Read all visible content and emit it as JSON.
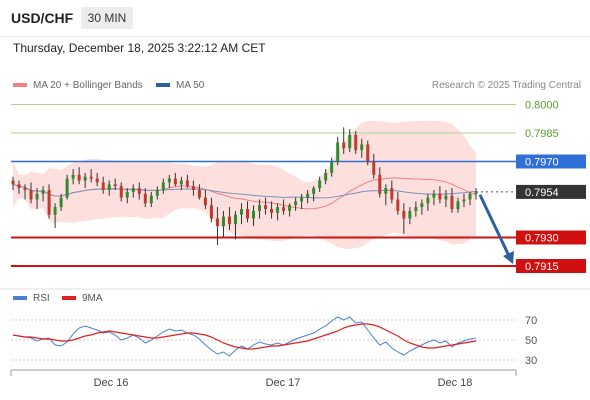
{
  "header": {
    "symbol": "USD/CHF",
    "timeframe": "30 MIN",
    "datetime": "Thursday, December 18, 2025 3:22:12 AM CET",
    "credit": "Research © 2025 Trading Central"
  },
  "legend": {
    "ma20": {
      "label": "MA 20 + Bollinger Bands",
      "color": "#f08080"
    },
    "ma50": {
      "label": "MA 50",
      "color": "#2f5f9e"
    },
    "rsi": {
      "label": "RSI",
      "color": "#4a7fd4"
    },
    "ma9": {
      "label": "9MA",
      "color": "#e02020"
    }
  },
  "chart_data": {
    "type": "candlestick",
    "price_axis": {
      "min": 0.7905,
      "max": 0.8005
    },
    "x_ticks": [
      "Dec 16",
      "Dec 17",
      "Dec 18"
    ],
    "levels": [
      {
        "price": 0.8,
        "label": "0.8000",
        "style": "green"
      },
      {
        "price": 0.7985,
        "label": "0.7985",
        "style": "green"
      },
      {
        "price": 0.797,
        "label": "0.7970",
        "style": "blue"
      },
      {
        "price": 0.7954,
        "label": "0.7954",
        "style": "current"
      },
      {
        "price": 0.793,
        "label": "0.7930",
        "style": "red"
      },
      {
        "price": 0.7915,
        "label": "0.7915",
        "style": "red"
      }
    ],
    "forecast_arrow": {
      "from": 0.7954,
      "to": 0.7915
    },
    "candles": [
      [
        0.796,
        0.7962,
        0.7955,
        0.7958
      ],
      [
        0.7958,
        0.796,
        0.7953,
        0.7956
      ],
      [
        0.7956,
        0.7958,
        0.795,
        0.7955
      ],
      [
        0.7955,
        0.7959,
        0.7948,
        0.795
      ],
      [
        0.795,
        0.7956,
        0.7945,
        0.7953
      ],
      [
        0.7953,
        0.7957,
        0.7949,
        0.7955
      ],
      [
        0.7955,
        0.7958,
        0.794,
        0.7942
      ],
      [
        0.7942,
        0.7948,
        0.7935,
        0.7946
      ],
      [
        0.7946,
        0.7953,
        0.7944,
        0.7951
      ],
      [
        0.7951,
        0.7963,
        0.795,
        0.7961
      ],
      [
        0.7961,
        0.7966,
        0.7958,
        0.7963
      ],
      [
        0.7963,
        0.7967,
        0.7958,
        0.796
      ],
      [
        0.796,
        0.7964,
        0.7956,
        0.7962
      ],
      [
        0.7962,
        0.7966,
        0.7959,
        0.7961
      ],
      [
        0.7961,
        0.7964,
        0.7957,
        0.7959
      ],
      [
        0.7959,
        0.7962,
        0.7953,
        0.7955
      ],
      [
        0.7955,
        0.796,
        0.7952,
        0.7958
      ],
      [
        0.7958,
        0.7961,
        0.7955,
        0.7957
      ],
      [
        0.7957,
        0.7959,
        0.7949,
        0.7951
      ],
      [
        0.7951,
        0.7956,
        0.7948,
        0.7954
      ],
      [
        0.7954,
        0.7958,
        0.7951,
        0.7956
      ],
      [
        0.7956,
        0.7959,
        0.795,
        0.7953
      ],
      [
        0.7953,
        0.7956,
        0.7946,
        0.7948
      ],
      [
        0.7948,
        0.7954,
        0.7946,
        0.7952
      ],
      [
        0.7952,
        0.7957,
        0.795,
        0.7955
      ],
      [
        0.7955,
        0.7961,
        0.7953,
        0.7959
      ],
      [
        0.7959,
        0.7963,
        0.7956,
        0.7961
      ],
      [
        0.7961,
        0.7964,
        0.7957,
        0.7958
      ],
      [
        0.7958,
        0.7962,
        0.7955,
        0.796
      ],
      [
        0.796,
        0.7963,
        0.7956,
        0.7957
      ],
      [
        0.7957,
        0.796,
        0.7952,
        0.7955
      ],
      [
        0.7955,
        0.7958,
        0.795,
        0.7951
      ],
      [
        0.7951,
        0.7955,
        0.7945,
        0.7947
      ],
      [
        0.7947,
        0.7951,
        0.7938,
        0.794
      ],
      [
        0.794,
        0.7946,
        0.7926,
        0.7936
      ],
      [
        0.7936,
        0.7944,
        0.793,
        0.7941
      ],
      [
        0.7941,
        0.7946,
        0.7934,
        0.7937
      ],
      [
        0.7937,
        0.7944,
        0.7929,
        0.7942
      ],
      [
        0.7942,
        0.7948,
        0.7937,
        0.7945
      ],
      [
        0.7945,
        0.7949,
        0.7938,
        0.794
      ],
      [
        0.794,
        0.7947,
        0.7936,
        0.7944
      ],
      [
        0.7944,
        0.795,
        0.794,
        0.7947
      ],
      [
        0.7947,
        0.7951,
        0.7942,
        0.7945
      ],
      [
        0.7945,
        0.7949,
        0.794,
        0.7943
      ],
      [
        0.7943,
        0.7948,
        0.7939,
        0.7946
      ],
      [
        0.7946,
        0.795,
        0.7942,
        0.7944
      ],
      [
        0.7944,
        0.7948,
        0.7941,
        0.7947
      ],
      [
        0.7947,
        0.7951,
        0.7944,
        0.7949
      ],
      [
        0.7949,
        0.7953,
        0.7945,
        0.7951
      ],
      [
        0.7951,
        0.7955,
        0.7948,
        0.7953
      ],
      [
        0.7953,
        0.7957,
        0.7949,
        0.7956
      ],
      [
        0.7956,
        0.7962,
        0.7954,
        0.796
      ],
      [
        0.796,
        0.7966,
        0.7958,
        0.7964
      ],
      [
        0.7964,
        0.7972,
        0.7962,
        0.797
      ],
      [
        0.797,
        0.7983,
        0.7968,
        0.798
      ],
      [
        0.798,
        0.7988,
        0.7974,
        0.7977
      ],
      [
        0.7977,
        0.7987,
        0.7975,
        0.7984
      ],
      [
        0.7984,
        0.7986,
        0.7974,
        0.7976
      ],
      [
        0.7976,
        0.7982,
        0.7972,
        0.7979
      ],
      [
        0.7979,
        0.7981,
        0.7968,
        0.797
      ],
      [
        0.797,
        0.7974,
        0.7961,
        0.7963
      ],
      [
        0.7963,
        0.7967,
        0.7951,
        0.7953
      ],
      [
        0.7953,
        0.7958,
        0.7947,
        0.7956
      ],
      [
        0.7956,
        0.796,
        0.7948,
        0.795
      ],
      [
        0.795,
        0.7954,
        0.7942,
        0.7944
      ],
      [
        0.7944,
        0.7948,
        0.7932,
        0.794
      ],
      [
        0.794,
        0.7946,
        0.7937,
        0.7944
      ],
      [
        0.7944,
        0.7949,
        0.7941,
        0.7946
      ],
      [
        0.7946,
        0.795,
        0.7942,
        0.7948
      ],
      [
        0.7948,
        0.7953,
        0.7944,
        0.7951
      ],
      [
        0.7951,
        0.7955,
        0.7947,
        0.7953
      ],
      [
        0.7953,
        0.7957,
        0.7948,
        0.795
      ],
      [
        0.795,
        0.7955,
        0.7946,
        0.7952
      ],
      [
        0.7952,
        0.7956,
        0.7943,
        0.7945
      ],
      [
        0.7945,
        0.7951,
        0.7943,
        0.7949
      ],
      [
        0.7949,
        0.7953,
        0.7946,
        0.795
      ],
      [
        0.795,
        0.7954,
        0.7947,
        0.7953
      ],
      [
        0.7953,
        0.7956,
        0.795,
        0.7954
      ]
    ],
    "rsi_axis": {
      "min": 20,
      "max": 80,
      "ticks": [
        70,
        50,
        30
      ]
    },
    "rsi": [
      55,
      54,
      53,
      52,
      49,
      51,
      52,
      45,
      44,
      48,
      56,
      62,
      64,
      62,
      60,
      57,
      58,
      55,
      50,
      52,
      55,
      52,
      47,
      50,
      54,
      58,
      61,
      59,
      60,
      57,
      55,
      51,
      45,
      40,
      36,
      38,
      34,
      40,
      44,
      41,
      45,
      48,
      46,
      45,
      47,
      45,
      48,
      51,
      53,
      55,
      57,
      61,
      64,
      69,
      73,
      70,
      73,
      67,
      68,
      60,
      52,
      45,
      48,
      42,
      38,
      35,
      39,
      42,
      45,
      48,
      50,
      47,
      49,
      43,
      47,
      49,
      51,
      52
    ],
    "rsi_ma9": [
      55,
      54,
      53,
      53,
      52,
      51,
      51,
      50,
      49,
      49,
      50,
      52,
      54,
      55,
      57,
      58,
      59,
      58,
      57,
      56,
      55,
      54,
      53,
      52,
      52,
      53,
      54,
      55,
      56,
      57,
      57,
      56,
      55,
      53,
      50,
      47,
      45,
      43,
      42,
      41,
      41,
      42,
      43,
      44,
      44,
      45,
      46,
      47,
      48,
      49,
      51,
      53,
      55,
      57,
      59,
      62,
      64,
      65,
      66,
      66,
      65,
      63,
      60,
      57,
      54,
      50,
      47,
      45,
      43,
      42,
      42,
      43,
      44,
      45,
      46,
      47,
      48,
      49
    ]
  }
}
